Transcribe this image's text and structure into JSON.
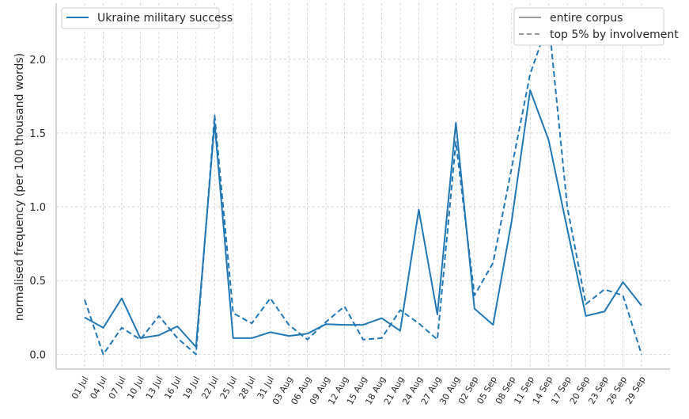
{
  "chart_data": {
    "type": "line",
    "ylabel": "normalised frequency (per 100 thousand words)",
    "xlabel": "",
    "ylim": [
      -0.1,
      2.38
    ],
    "grid": true,
    "yticks": [
      "0.0",
      "0.5",
      "1.0",
      "1.5",
      "2.0"
    ],
    "ytick_values": [
      0.0,
      0.5,
      1.0,
      1.5,
      2.0
    ],
    "categories": [
      "01 Jul",
      "04 Jul",
      "07 Jul",
      "10 Jul",
      "13 Jul",
      "16 Jul",
      "19 Jul",
      "22 Jul",
      "25 Jul",
      "28 Jul",
      "31 Jul",
      "03 Aug",
      "06 Aug",
      "09 Aug",
      "12 Aug",
      "15 Aug",
      "18 Aug",
      "21 Aug",
      "24 Aug",
      "27 Aug",
      "30 Aug",
      "02 Sep",
      "05 Sep",
      "08 Sep",
      "11 Sep",
      "14 Sep",
      "17 Sep",
      "20 Sep",
      "23 Sep",
      "26 Sep",
      "29 Sep"
    ],
    "series": [
      {
        "name": "Ukraine military success",
        "subset": "entire corpus",
        "color": "#1f77b4",
        "dash": "solid",
        "values": [
          0.25,
          0.18,
          0.38,
          0.11,
          0.13,
          0.19,
          0.05,
          1.57,
          0.11,
          0.11,
          0.15,
          0.125,
          0.14,
          0.205,
          0.2,
          0.2,
          0.245,
          0.16,
          0.98,
          0.27,
          1.57,
          0.31,
          0.2,
          0.9,
          1.79,
          1.45,
          0.85,
          0.26,
          0.29,
          0.49,
          0.33
        ]
      },
      {
        "name": "Ukraine military success",
        "subset": "top 5% by involvement",
        "color": "#1f77b4",
        "dash": "dashed",
        "values": [
          0.37,
          0.0,
          0.18,
          0.1,
          0.26,
          0.11,
          0.0,
          1.62,
          0.28,
          0.21,
          0.38,
          0.2,
          0.1,
          0.22,
          0.325,
          0.1,
          0.11,
          0.3,
          0.21,
          0.1,
          1.44,
          0.4,
          0.62,
          1.26,
          1.9,
          2.26,
          1.0,
          0.34,
          0.44,
          0.4,
          0.0
        ]
      }
    ],
    "legend_left": {
      "placement": "top-left",
      "entries": [
        {
          "label": "Ukraine military success",
          "color": "#1f77b4",
          "dash": "solid"
        }
      ]
    },
    "legend_right": {
      "placement": "top-right",
      "entries": [
        {
          "label": "entire corpus",
          "color": "#999999",
          "dash": "solid"
        },
        {
          "label": "top 5% by involvement",
          "color": "#999999",
          "dash": "dashed"
        }
      ]
    }
  }
}
